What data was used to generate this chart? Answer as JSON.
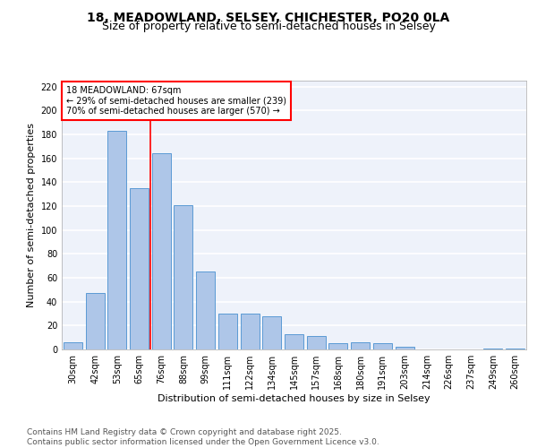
{
  "title1": "18, MEADOWLAND, SELSEY, CHICHESTER, PO20 0LA",
  "title2": "Size of property relative to semi-detached houses in Selsey",
  "xlabel": "Distribution of semi-detached houses by size in Selsey",
  "ylabel": "Number of semi-detached properties",
  "categories": [
    "30sqm",
    "42sqm",
    "53sqm",
    "65sqm",
    "76sqm",
    "88sqm",
    "99sqm",
    "111sqm",
    "122sqm",
    "134sqm",
    "145sqm",
    "157sqm",
    "168sqm",
    "180sqm",
    "191sqm",
    "203sqm",
    "214sqm",
    "226sqm",
    "237sqm",
    "249sqm",
    "260sqm"
  ],
  "values": [
    6,
    47,
    183,
    135,
    164,
    121,
    65,
    30,
    30,
    28,
    13,
    11,
    5,
    6,
    5,
    2,
    0,
    0,
    0,
    1,
    1
  ],
  "bar_color": "#aec6e8",
  "bar_edge_color": "#5b9bd5",
  "vline_x_index": 3,
  "vline_color": "red",
  "annotation_text": "18 MEADOWLAND: 67sqm\n← 29% of semi-detached houses are smaller (239)\n70% of semi-detached houses are larger (570) →",
  "annotation_box_color": "white",
  "annotation_box_edge_color": "red",
  "footer_text": "Contains HM Land Registry data © Crown copyright and database right 2025.\nContains public sector information licensed under the Open Government Licence v3.0.",
  "ylim": [
    0,
    225
  ],
  "yticks": [
    0,
    20,
    40,
    60,
    80,
    100,
    120,
    140,
    160,
    180,
    200,
    220
  ],
  "background_color": "#eef2fa",
  "grid_color": "#ffffff",
  "title_fontsize": 10,
  "subtitle_fontsize": 9,
  "axis_label_fontsize": 8,
  "tick_fontsize": 7,
  "annotation_fontsize": 7,
  "footer_fontsize": 6.5
}
